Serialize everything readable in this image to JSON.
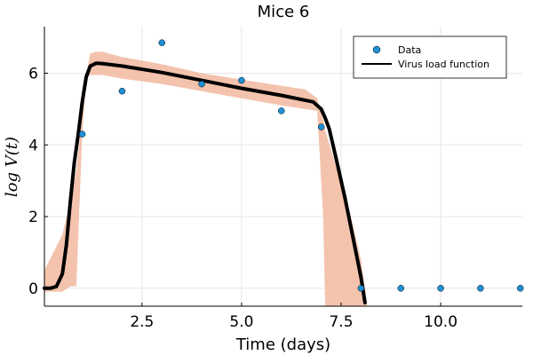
{
  "chart_data": {
    "type": "line",
    "title": "Mice 6",
    "xlabel": "Time (days)",
    "ylabel": "log V(t)",
    "xlim": [
      0.05,
      12.05
    ],
    "ylim": [
      -0.5,
      7.3
    ],
    "xticks": [
      2.5,
      5.0,
      7.5,
      10.0
    ],
    "xtick_labels": [
      "2.5",
      "5.0",
      "7.5",
      "10.0"
    ],
    "yticks": [
      0,
      2,
      4,
      6
    ],
    "ytick_labels": [
      "0",
      "2",
      "4",
      "6"
    ],
    "grid": true,
    "legend_position": "top-right",
    "series": [
      {
        "name": "Data",
        "kind": "scatter",
        "color": "#1f8fd6",
        "x": [
          1,
          2,
          3,
          4,
          5,
          6,
          7,
          8,
          9,
          10,
          11,
          12
        ],
        "y": [
          4.3,
          5.5,
          6.85,
          5.7,
          5.8,
          4.95,
          4.5,
          0,
          0,
          0,
          0,
          0
        ]
      },
      {
        "name": "Virus load function",
        "kind": "line",
        "color": "#000000",
        "x": [
          0.05,
          0.2,
          0.35,
          0.5,
          0.6,
          0.7,
          0.8,
          0.9,
          1.0,
          1.1,
          1.2,
          1.35,
          1.5,
          2.0,
          3.0,
          4.0,
          5.0,
          6.0,
          6.8,
          7.0,
          7.1,
          7.2,
          7.4,
          7.6,
          7.8,
          8.0,
          8.1
        ],
        "y": [
          0.0,
          0.0,
          0.05,
          0.4,
          1.2,
          2.4,
          3.5,
          4.3,
          5.2,
          5.9,
          6.2,
          6.28,
          6.27,
          6.2,
          6.02,
          5.8,
          5.58,
          5.38,
          5.2,
          5.0,
          4.75,
          4.45,
          3.5,
          2.5,
          1.4,
          0.3,
          -0.4
        ]
      },
      {
        "name": "",
        "kind": "band",
        "color": "#f3c3ad",
        "x": [
          0.05,
          0.5,
          0.7,
          0.85,
          1.0,
          1.1,
          1.2,
          1.35,
          1.5,
          2.0,
          3.0,
          4.0,
          5.0,
          6.0,
          6.6,
          6.9,
          7.05,
          7.1,
          7.4,
          7.7,
          8.0,
          8.1,
          8.15
        ],
        "upper": [
          0.5,
          1.5,
          2.4,
          3.3,
          4.8,
          6.0,
          6.55,
          6.6,
          6.6,
          6.45,
          6.25,
          6.0,
          5.82,
          5.65,
          5.55,
          5.3,
          4.7,
          4.4,
          3.3,
          2.2,
          0.8,
          0.0,
          -0.5
        ],
        "lower": [
          -0.1,
          -0.1,
          0.05,
          0.05,
          4.3,
          5.85,
          5.95,
          5.95,
          5.95,
          5.85,
          5.7,
          5.5,
          5.3,
          5.1,
          5.0,
          4.95,
          2.0,
          -0.5,
          -0.5,
          -0.5,
          -0.5,
          -0.5,
          -0.5
        ]
      }
    ]
  }
}
